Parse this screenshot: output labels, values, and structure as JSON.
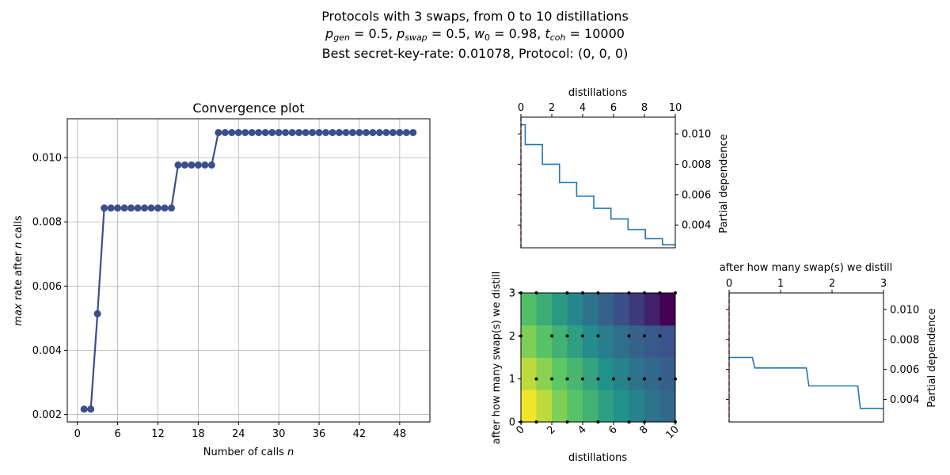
{
  "figure": {
    "suptitle_line1": "Protocols with 3 swaps, from 0 to 10 distillations",
    "suptitle_line2": "p_gen = 0.5, p_swap = 0.5, w_0 = 0.98, t_coh = 10000",
    "suptitle_line3": "Best secret-key-rate: 0.01078, Protocol: (0, 0, 0)"
  },
  "chart_data": [
    {
      "id": "convergence",
      "type": "line",
      "title": "Convergence plot",
      "xlabel": "Number of calls n",
      "ylabel": "max rate after n calls",
      "x_ticks": [
        0,
        6,
        12,
        18,
        24,
        30,
        36,
        42,
        48
      ],
      "y_ticks": [
        "0.002",
        "0.004",
        "0.006",
        "0.008",
        "0.010"
      ],
      "xlim": [
        -1.5,
        52.5
      ],
      "ylim": [
        0.00177,
        0.01121
      ],
      "grid": true,
      "color": "#3a4f8c",
      "x": [
        1,
        2,
        3,
        4,
        5,
        6,
        7,
        8,
        9,
        10,
        11,
        12,
        13,
        14,
        15,
        16,
        17,
        18,
        19,
        20,
        21,
        22,
        23,
        24,
        25,
        26,
        27,
        28,
        29,
        30,
        31,
        32,
        33,
        34,
        35,
        36,
        37,
        38,
        39,
        40,
        41,
        42,
        43,
        44,
        45,
        46,
        47,
        48,
        49,
        50
      ],
      "y": [
        0.00217,
        0.00217,
        0.00514,
        0.00843,
        0.00843,
        0.00843,
        0.00843,
        0.00843,
        0.00843,
        0.00843,
        0.00843,
        0.00843,
        0.00843,
        0.00843,
        0.00977,
        0.00977,
        0.00977,
        0.00977,
        0.00977,
        0.00977,
        0.01078,
        0.01078,
        0.01078,
        0.01078,
        0.01078,
        0.01078,
        0.01078,
        0.01078,
        0.01078,
        0.01078,
        0.01078,
        0.01078,
        0.01078,
        0.01078,
        0.01078,
        0.01078,
        0.01078,
        0.01078,
        0.01078,
        0.01078,
        0.01078,
        0.01078,
        0.01078,
        0.01078,
        0.01078,
        0.01078,
        0.01078,
        0.01078,
        0.01078,
        0.01078
      ]
    },
    {
      "id": "pd-distillations",
      "type": "line",
      "title": "",
      "xlabel": "distillations",
      "ylabel": "Partial dependence",
      "x_ticks": [
        "0",
        "2",
        "4",
        "6",
        "8",
        "10"
      ],
      "y_ticks": [
        "0.004",
        "0.006",
        "0.008",
        "0.010"
      ],
      "xlim": [
        0,
        10
      ],
      "ylim": [
        0.0025,
        0.0111
      ],
      "color": "#1f77b4",
      "x": [
        0.0,
        0.28,
        0.28,
        1.39,
        1.39,
        2.5,
        2.5,
        3.61,
        3.61,
        4.72,
        4.72,
        5.83,
        5.83,
        6.94,
        6.94,
        8.06,
        8.06,
        9.17,
        9.17,
        10.0
      ],
      "y": [
        0.0106,
        0.0106,
        0.0093,
        0.0093,
        0.008,
        0.008,
        0.0068,
        0.0068,
        0.0059,
        0.0059,
        0.0051,
        0.0051,
        0.0044,
        0.0044,
        0.0037,
        0.0037,
        0.0031,
        0.0031,
        0.0027,
        0.0027
      ],
      "marker_line_x": 0,
      "marker_line_color": "#d62728"
    },
    {
      "id": "pd-swaps",
      "type": "line",
      "title": "after how many swap(s) we distill",
      "xlabel": "",
      "ylabel": "Partial dependence",
      "x_ticks": [
        "0",
        "1",
        "2",
        "3"
      ],
      "y_ticks": [
        "0.004",
        "0.006",
        "0.008",
        "0.010"
      ],
      "xlim": [
        0,
        3
      ],
      "ylim": [
        0.0025,
        0.0111
      ],
      "color": "#1f77b4",
      "x": [
        0.0,
        0.45,
        0.5,
        1.5,
        1.55,
        2.5,
        2.55,
        3.0
      ],
      "y": [
        0.0068,
        0.0068,
        0.0061,
        0.0061,
        0.0049,
        0.0049,
        0.0034,
        0.0034
      ],
      "marker_line_x": 0,
      "marker_line_color": "#d62728"
    },
    {
      "id": "pd-heatmap",
      "type": "heatmap",
      "xlabel": "distillations",
      "ylabel": "after how many swap(s) we distill",
      "x_ticks": [
        "0",
        "2",
        "4",
        "6",
        "8",
        "10"
      ],
      "y_ticks": [
        "0",
        "1",
        "2",
        "3"
      ],
      "xlim": [
        0,
        10
      ],
      "ylim": [
        0,
        3
      ],
      "grid": [
        [
          0.98,
          0.9,
          0.8,
          0.72,
          0.64,
          0.56,
          0.5,
          0.44,
          0.38,
          0.34
        ],
        [
          0.9,
          0.82,
          0.74,
          0.66,
          0.58,
          0.5,
          0.44,
          0.38,
          0.34,
          0.3
        ],
        [
          0.8,
          0.72,
          0.64,
          0.56,
          0.48,
          0.42,
          0.36,
          0.31,
          0.28,
          0.25
        ],
        [
          0.7,
          0.62,
          0.54,
          0.46,
          0.38,
          0.31,
          0.24,
          0.18,
          0.1,
          0.0
        ]
      ],
      "samples": [
        [
          0,
          0
        ],
        [
          0,
          3
        ],
        [
          0,
          2
        ],
        [
          1,
          0
        ],
        [
          1,
          1
        ],
        [
          1,
          3
        ],
        [
          2,
          1
        ],
        [
          2,
          2
        ],
        [
          3,
          0
        ],
        [
          3,
          1
        ],
        [
          3,
          2
        ],
        [
          3,
          3
        ],
        [
          4,
          1
        ],
        [
          4,
          2
        ],
        [
          4,
          3
        ],
        [
          5,
          0
        ],
        [
          5,
          1
        ],
        [
          5,
          2
        ],
        [
          5,
          3
        ],
        [
          6,
          1
        ],
        [
          7,
          0
        ],
        [
          7,
          1
        ],
        [
          7,
          2
        ],
        [
          7,
          3
        ],
        [
          8,
          0
        ],
        [
          8,
          1
        ],
        [
          8,
          2
        ],
        [
          8,
          3
        ],
        [
          9,
          1
        ],
        [
          9,
          2
        ],
        [
          9,
          3
        ],
        [
          10,
          0
        ],
        [
          10,
          1
        ],
        [
          10,
          3
        ]
      ]
    }
  ]
}
